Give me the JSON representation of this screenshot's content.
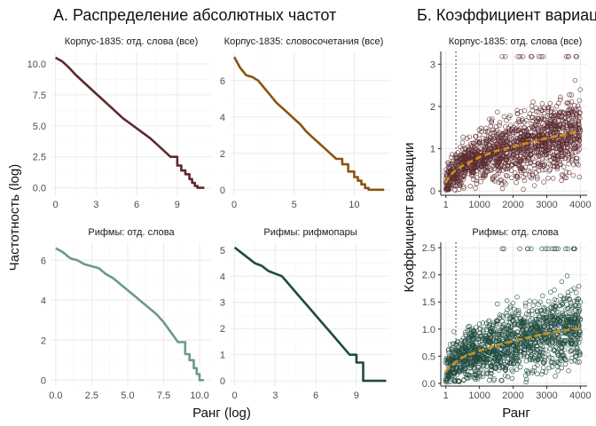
{
  "panel_a": {
    "title": "А. Распределение абсолютных частот",
    "ylabel": "Частотность (log)",
    "xlabel": "Ранг (log)"
  },
  "panel_b": {
    "title": "Б. Коэффициент вариации",
    "ylabel": "Коэффициент вариации",
    "xlabel": "Ранг"
  },
  "colors": {
    "corpus_words": "#5c2a2e",
    "corpus_bigrams": "#8a5410",
    "rhyme_words": "#6a9a8a",
    "rhyme_pairs": "#1f4a3e",
    "trend": "#c8901e"
  },
  "chart_data": [
    {
      "type": "line",
      "facet": "Корпус-1835: отд. слова (все)",
      "x": [
        0,
        0.5,
        1,
        1.5,
        2,
        2.5,
        3,
        3.5,
        4,
        4.5,
        5,
        5.5,
        6,
        6.5,
        7,
        7.5,
        8,
        8.5,
        9,
        9.3,
        9.6,
        9.9,
        10.1,
        10.3,
        10.5,
        11
      ],
      "y": [
        10.5,
        10.2,
        9.7,
        9.1,
        8.6,
        8.1,
        7.6,
        7.1,
        6.6,
        6.1,
        5.6,
        5.2,
        4.8,
        4.4,
        4.0,
        3.5,
        3.0,
        2.5,
        1.8,
        1.4,
        1.1,
        0.7,
        0.4,
        0.15,
        0,
        0
      ],
      "xlim": [
        -0.3,
        11.5
      ],
      "ylim": [
        -0.6,
        11
      ],
      "xticks": [
        0,
        3,
        6,
        9
      ],
      "yticks": [
        0.0,
        2.5,
        5.0,
        7.5,
        10.0
      ],
      "ytick_labels": [
        "0.0",
        "2.5",
        "5.0",
        "7.5",
        "10.0"
      ]
    },
    {
      "type": "line",
      "facet": "Корпус-1835: словосочетания (все)",
      "x": [
        0,
        0.5,
        1,
        1.5,
        2,
        2.5,
        3,
        3.5,
        4,
        4.5,
        5,
        5.5,
        6,
        6.5,
        7,
        7.5,
        8,
        8.5,
        9,
        9.5,
        10,
        10.3,
        10.6,
        10.9,
        11.2,
        11.5,
        12.5
      ],
      "y": [
        7.3,
        6.7,
        6.3,
        6.2,
        6.0,
        5.6,
        5.2,
        4.8,
        4.5,
        4.2,
        3.9,
        3.6,
        3.2,
        2.9,
        2.6,
        2.3,
        2.0,
        1.7,
        1.4,
        1.0,
        0.7,
        0.5,
        0.3,
        0.1,
        0,
        0,
        0
      ],
      "xlim": [
        -0.3,
        13
      ],
      "ylim": [
        -0.3,
        7.6
      ],
      "xticks": [
        0,
        5,
        10
      ],
      "yticks": [
        0,
        2,
        4,
        6
      ],
      "ytick_labels": [
        "0",
        "2",
        "4",
        "6"
      ]
    },
    {
      "type": "line",
      "facet": "Рифмы: отд. слова",
      "x": [
        0,
        0.5,
        1,
        1.5,
        2,
        2.5,
        3,
        3.5,
        4,
        4.5,
        5,
        5.5,
        6,
        6.5,
        7,
        7.5,
        8,
        8.5,
        9,
        9.3,
        9.6,
        9.8,
        10.0,
        10.3
      ],
      "y": [
        6.6,
        6.4,
        6.1,
        6.0,
        5.8,
        5.7,
        5.6,
        5.3,
        5.1,
        4.8,
        4.5,
        4.2,
        3.9,
        3.6,
        3.3,
        2.9,
        2.4,
        1.9,
        1.3,
        1.0,
        0.6,
        0.3,
        0,
        0
      ],
      "xlim": [
        -0.3,
        10.8
      ],
      "ylim": [
        -0.3,
        6.9
      ],
      "xticks": [
        0.0,
        2.5,
        5.0,
        7.5,
        10.0
      ],
      "xtick_labels": [
        "0.0",
        "2.5",
        "5.0",
        "7.5",
        "10.0"
      ],
      "yticks": [
        0,
        2,
        4,
        6
      ],
      "ytick_labels": [
        "0",
        "2",
        "4",
        "6"
      ]
    },
    {
      "type": "line",
      "facet": "Рифмы: рифмопары",
      "x": [
        0,
        0.5,
        1,
        1.5,
        2,
        2.5,
        3,
        3.5,
        4,
        4.5,
        5,
        5.5,
        6,
        6.5,
        7,
        7.5,
        8,
        8.5,
        9,
        9.5,
        10,
        10.5,
        11.2
      ],
      "y": [
        5.1,
        4.9,
        4.7,
        4.5,
        4.4,
        4.2,
        4.1,
        4.0,
        3.7,
        3.4,
        3.1,
        2.8,
        2.5,
        2.2,
        1.9,
        1.6,
        1.3,
        1.0,
        0.7,
        0,
        0,
        0,
        0
      ],
      "xlim": [
        -0.3,
        11.5
      ],
      "ylim": [
        -0.2,
        5.3
      ],
      "xticks": [
        0,
        3,
        6,
        9
      ],
      "yticks": [
        0,
        1,
        2,
        3,
        4,
        5
      ],
      "ytick_labels": [
        "0",
        "1",
        "2",
        "3",
        "4",
        "5"
      ]
    },
    {
      "type": "scatter",
      "facet": "Корпус-1835: отд. слова (все)",
      "x_range": [
        1,
        4000
      ],
      "vline": 300,
      "trend": {
        "x": [
          1,
          100,
          300,
          500,
          1000,
          1500,
          2000,
          2500,
          3000,
          3500,
          4000
        ],
        "y": [
          0.2,
          0.35,
          0.5,
          0.6,
          0.8,
          0.95,
          1.05,
          1.15,
          1.25,
          1.33,
          1.42
        ]
      },
      "xlim": [
        -150,
        4200
      ],
      "ylim": [
        -0.1,
        3.3
      ],
      "xticks": [
        1,
        1000,
        2000,
        3000,
        4000
      ],
      "xtick_labels": [
        "1",
        "1000",
        "2000",
        "3000",
        "4000"
      ],
      "yticks": [
        0,
        1,
        2,
        3
      ],
      "ytick_labels": [
        "0",
        "1",
        "2",
        "3"
      ]
    },
    {
      "type": "scatter",
      "facet": "Рифмы: отд. слова",
      "x_range": [
        1,
        4000
      ],
      "vline": 300,
      "trend": {
        "x": [
          1,
          100,
          300,
          500,
          1000,
          1500,
          2000,
          2500,
          3000,
          3500,
          4000
        ],
        "y": [
          0.22,
          0.3,
          0.4,
          0.48,
          0.6,
          0.7,
          0.78,
          0.85,
          0.92,
          0.97,
          1.02
        ]
      },
      "xlim": [
        -150,
        4200
      ],
      "ylim": [
        -0.05,
        2.6
      ],
      "xticks": [
        1,
        1000,
        2000,
        3000,
        4000
      ],
      "xtick_labels": [
        "1",
        "1000",
        "2000",
        "3000",
        "4000"
      ],
      "yticks": [
        0.0,
        0.5,
        1.0,
        1.5,
        2.0,
        2.5
      ],
      "ytick_labels": [
        "0.0",
        "0.5",
        "1.0",
        "1.5",
        "2.0",
        "2.5"
      ]
    }
  ]
}
